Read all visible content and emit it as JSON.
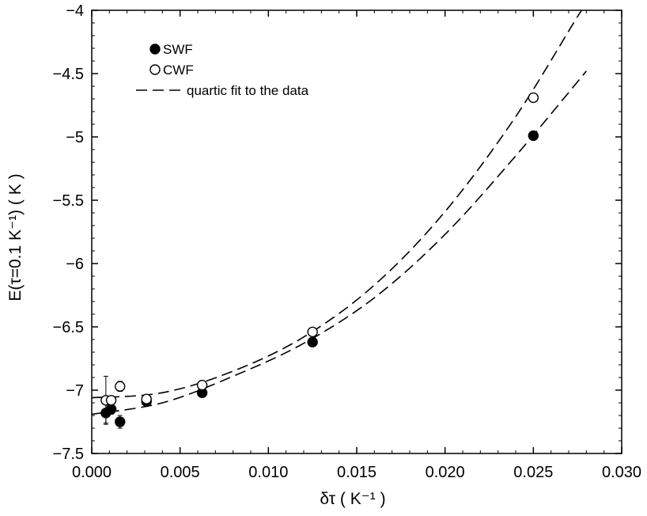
{
  "chart_data": {
    "type": "scatter",
    "xlabel": "δτ   ( K⁻¹ )",
    "ylabel": "E(τ=0.1 K⁻¹)  ( K )",
    "xlim": [
      0.0,
      0.03
    ],
    "ylim": [
      -7.5,
      -4.0
    ],
    "xticks": [
      0.0,
      0.005,
      0.01,
      0.015,
      0.02,
      0.025,
      0.03
    ],
    "xtick_labels": [
      "0.000",
      "0.005",
      "0.010",
      "0.015",
      "0.020",
      "0.025",
      "0.030"
    ],
    "yticks": [
      -7.5,
      -7.0,
      -6.5,
      -6.0,
      -5.5,
      -5.0,
      -4.5,
      -4.0
    ],
    "ytick_labels": [
      "−7.5",
      "−7",
      "−6.5",
      "−6",
      "−5.5",
      "−5",
      "−4.5",
      "−4"
    ],
    "grid": false,
    "legend_position": "top-left",
    "legend": [
      {
        "label": "SWF",
        "marker": "filled-circle"
      },
      {
        "label": "CWF",
        "marker": "open-circle"
      },
      {
        "label": "quartic fit to the data",
        "marker": "dashed-line"
      }
    ],
    "series": [
      {
        "name": "SWF",
        "marker": "filled-circle",
        "x": [
          0.0008,
          0.0011,
          0.0016,
          0.0031,
          0.00625,
          0.0125,
          0.025
        ],
        "y": [
          -7.18,
          -7.15,
          -7.25,
          -7.09,
          -7.02,
          -6.62,
          -4.99
        ],
        "yerr": [
          0.08,
          0.04,
          0.05,
          0.02,
          0.02,
          0.02,
          0.02
        ]
      },
      {
        "name": "CWF",
        "marker": "open-circle",
        "x": [
          0.0008,
          0.0011,
          0.0016,
          0.0031,
          0.00625,
          0.0125,
          0.025
        ],
        "y": [
          -7.08,
          -7.08,
          -6.97,
          -7.07,
          -6.96,
          -6.54,
          -4.69
        ],
        "yerr": [
          0.19,
          0.03,
          0.04,
          0.03,
          0.02,
          0.02,
          0.02
        ]
      }
    ],
    "fits": [
      {
        "name": "quartic fit to the data",
        "fits_series": "SWF",
        "style": "dashed",
        "x": [
          0.0,
          0.004,
          0.008,
          0.012,
          0.016,
          0.02,
          0.024,
          0.028
        ],
        "y": [
          -7.19,
          -7.1,
          -6.89,
          -6.63,
          -6.27,
          -5.77,
          -5.15,
          -4.48
        ]
      },
      {
        "name": "quartic fit to the data",
        "fits_series": "CWF",
        "style": "dashed",
        "x": [
          0.0,
          0.004,
          0.008,
          0.012,
          0.016,
          0.02,
          0.024,
          0.0275,
          0.028
        ],
        "y": [
          -7.06,
          -7.02,
          -6.85,
          -6.58,
          -6.17,
          -5.59,
          -4.84,
          -4.05,
          -3.96
        ]
      }
    ]
  }
}
